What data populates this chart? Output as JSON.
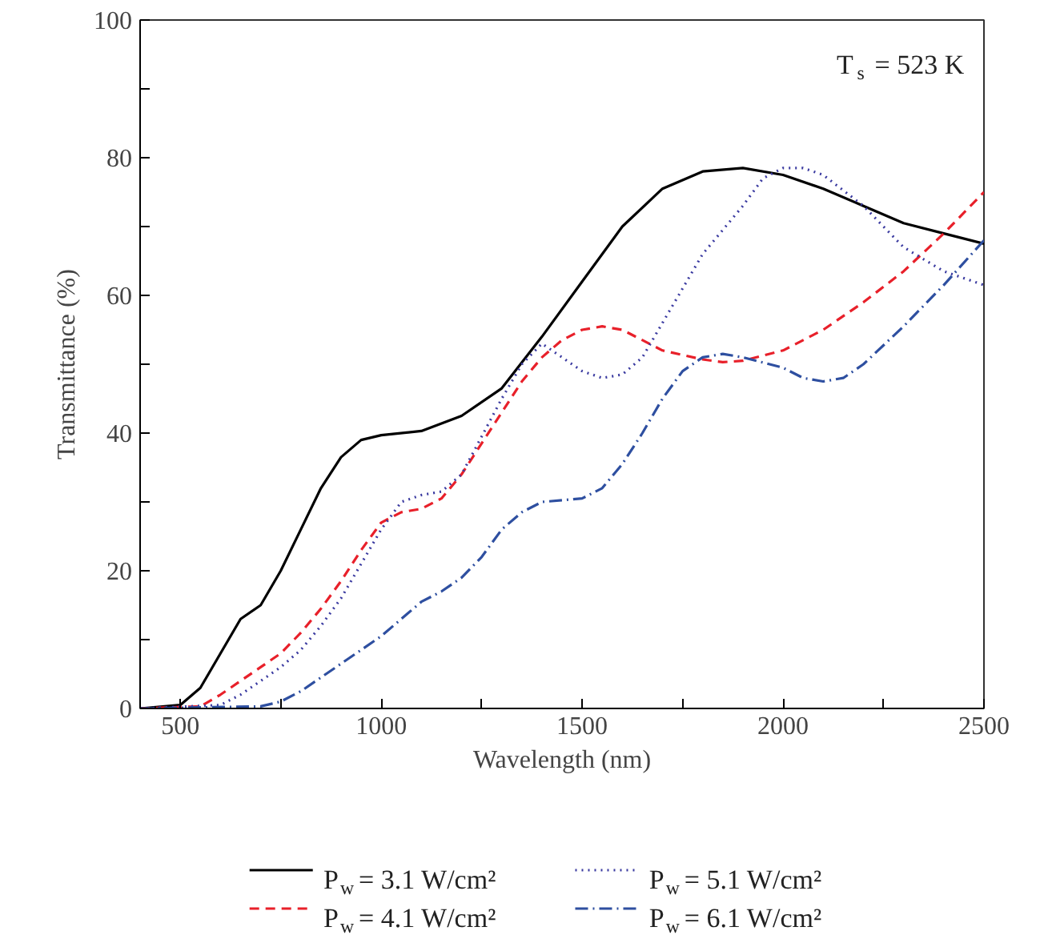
{
  "chart_data": {
    "type": "line",
    "xlabel": "Wavelength (nm)",
    "ylabel": "Transmittance (%)",
    "annotations": [
      "T$_{s}$ = 523 K"
    ],
    "xlim": [
      400,
      2500
    ],
    "ylim": [
      0,
      100
    ],
    "xticks": [
      500,
      {
        "value": 750,
        "label": null
      },
      1000,
      {
        "value": 1250,
        "label": null
      },
      1500,
      {
        "value": 1750,
        "label": null
      },
      2000,
      {
        "value": 2250,
        "label": null
      },
      2500
    ],
    "yticks": [
      0,
      {
        "value": 10,
        "label": null
      },
      20,
      {
        "value": 30,
        "label": null
      },
      40,
      {
        "value": 50,
        "label": null
      },
      60,
      {
        "value": 70,
        "label": null
      },
      80,
      {
        "value": 90,
        "label": null
      },
      100
    ],
    "grid": false,
    "legend": "bottom",
    "marker": "none",
    "series": [
      {
        "name": "P$_{w}$ = 3.1 W/cm²",
        "color": "#000000",
        "line_style": "solid",
        "x": [
          400,
          500,
          550,
          600,
          650,
          700,
          750,
          800,
          850,
          900,
          950,
          1000,
          1100,
          1200,
          1300,
          1400,
          1500,
          1600,
          1700,
          1800,
          1900,
          2000,
          2100,
          2200,
          2300,
          2400,
          2500
        ],
        "values": [
          0,
          0.5,
          3,
          8,
          13,
          15,
          20,
          26,
          32,
          36.5,
          39,
          39.7,
          40.3,
          42.5,
          46.5,
          54,
          62,
          70,
          75.5,
          78,
          78.5,
          77.5,
          75.5,
          73,
          70.5,
          69,
          67.5
        ]
      },
      {
        "name": "P$_{w}$ = 4.1 W/cm²",
        "color": "#e8202a",
        "line_style": "dashed",
        "x": [
          400,
          550,
          600,
          650,
          700,
          750,
          800,
          850,
          900,
          950,
          1000,
          1050,
          1100,
          1150,
          1200,
          1250,
          1300,
          1350,
          1400,
          1450,
          1500,
          1550,
          1600,
          1650,
          1700,
          1800,
          1850,
          1900,
          2000,
          2100,
          2200,
          2300,
          2400,
          2500
        ],
        "values": [
          0,
          0.3,
          2,
          4,
          6,
          8,
          11,
          14.5,
          18.5,
          23,
          27,
          28.5,
          29,
          30.5,
          34,
          38.5,
          43,
          47.5,
          51,
          53.5,
          55,
          55.5,
          55,
          53.5,
          52,
          50.7,
          50.3,
          50.5,
          52,
          55,
          59,
          63.5,
          69,
          75
        ]
      },
      {
        "name": "P$_{w}$ = 5.1 W/cm²",
        "color": "#3a3aa0",
        "line_style": "dotted",
        "x": [
          400,
          600,
          650,
          700,
          750,
          800,
          850,
          900,
          950,
          1000,
          1050,
          1100,
          1150,
          1200,
          1250,
          1300,
          1350,
          1400,
          1450,
          1500,
          1550,
          1600,
          1650,
          1700,
          1800,
          1900,
          1950,
          2000,
          2050,
          2100,
          2200,
          2300,
          2400,
          2500
        ],
        "values": [
          0,
          0.5,
          2,
          4,
          6,
          8.5,
          12,
          16,
          21,
          26,
          30,
          31,
          31.5,
          34,
          39.5,
          45,
          50,
          53,
          51,
          49,
          48,
          48.5,
          51,
          56,
          66,
          73,
          77,
          78.5,
          78.5,
          77.5,
          73,
          67,
          63.5,
          61.5
        ]
      },
      {
        "name": "P$_{w}$ = 6.1 W/cm²",
        "color": "#2e4fa0",
        "line_style": "dashdot",
        "x": [
          400,
          700,
          750,
          800,
          850,
          900,
          950,
          1000,
          1050,
          1100,
          1150,
          1200,
          1250,
          1300,
          1350,
          1400,
          1500,
          1550,
          1600,
          1650,
          1700,
          1750,
          1800,
          1850,
          1900,
          2000,
          2050,
          2100,
          2150,
          2200,
          2300,
          2400,
          2500
        ],
        "values": [
          0,
          0.3,
          1,
          2.5,
          4.5,
          6.5,
          8.5,
          10.5,
          13,
          15.5,
          17,
          19,
          22,
          26,
          28.5,
          30,
          30.5,
          32,
          35.5,
          40,
          45,
          49,
          51,
          51.5,
          51,
          49.5,
          48,
          47.5,
          48,
          50,
          55.5,
          61.5,
          68
        ]
      }
    ]
  }
}
